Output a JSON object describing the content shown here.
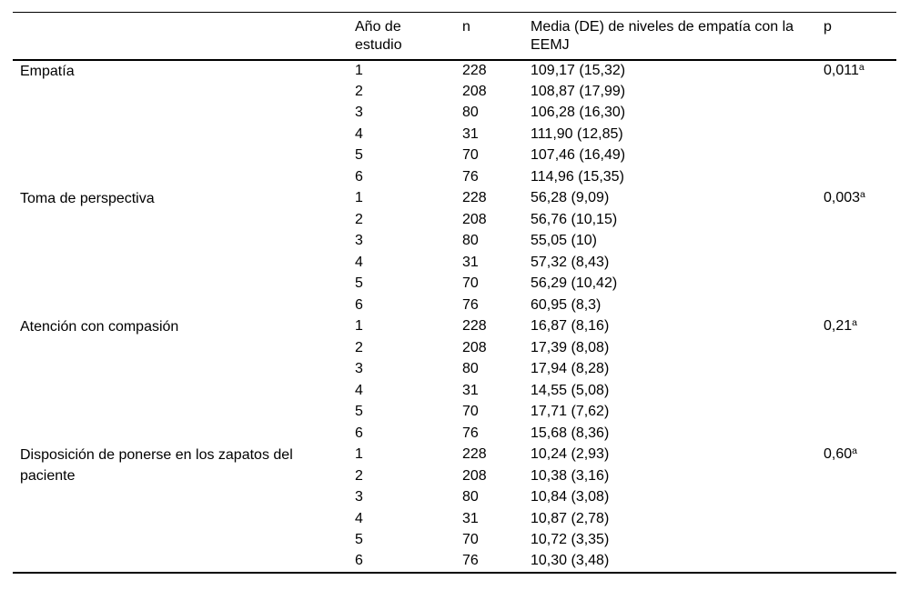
{
  "table": {
    "headers": {
      "row_label": "",
      "year": "Año de estudio",
      "n": "n",
      "mean": "Media (DE) de niveles de empatía con la EEMJ",
      "p": "p"
    },
    "groups": [
      {
        "label": "Empatía",
        "p_value": "0,011",
        "p_sup": "a",
        "rows": [
          {
            "year": "1",
            "n": "228",
            "mean": "109,17 (15,32)"
          },
          {
            "year": "2",
            "n": "208",
            "mean": "108,87 (17,99)"
          },
          {
            "year": "3",
            "n": "80",
            "mean": "106,28 (16,30)"
          },
          {
            "year": "4",
            "n": "31",
            "mean": "111,90 (12,85)"
          },
          {
            "year": "5",
            "n": "70",
            "mean": "107,46 (16,49)"
          },
          {
            "year": "6",
            "n": "76",
            "mean": "114,96 (15,35)"
          }
        ]
      },
      {
        "label": "Toma de perspectiva",
        "p_value": "0,003",
        "p_sup": "a",
        "rows": [
          {
            "year": "1",
            "n": "228",
            "mean": "56,28 (9,09)"
          },
          {
            "year": "2",
            "n": "208",
            "mean": "56,76 (10,15)"
          },
          {
            "year": "3",
            "n": "80",
            "mean": "55,05 (10)"
          },
          {
            "year": "4",
            "n": "31",
            "mean": "57,32 (8,43)"
          },
          {
            "year": "5",
            "n": "70",
            "mean": "56,29 (10,42)"
          },
          {
            "year": "6",
            "n": "76",
            "mean": "60,95 (8,3)"
          }
        ]
      },
      {
        "label": "Atención con compasión",
        "p_value": "0,21",
        "p_sup": "a",
        "rows": [
          {
            "year": "1",
            "n": "228",
            "mean": "16,87 (8,16)"
          },
          {
            "year": "2",
            "n": "208",
            "mean": "17,39 (8,08)"
          },
          {
            "year": "3",
            "n": "80",
            "mean": "17,94 (8,28)"
          },
          {
            "year": "4",
            "n": "31",
            "mean": "14,55 (5,08)"
          },
          {
            "year": "5",
            "n": "70",
            "mean": "17,71 (7,62)"
          },
          {
            "year": "6",
            "n": "76",
            "mean": "15,68 (8,36)"
          }
        ]
      },
      {
        "label": "Disposición de ponerse en los zapatos del paciente",
        "p_value": "0,60",
        "p_sup": "a",
        "rows": [
          {
            "year": "1",
            "n": "228",
            "mean": "10,24 (2,93)"
          },
          {
            "year": "2",
            "n": "208",
            "mean": "10,38 (3,16)"
          },
          {
            "year": "3",
            "n": "80",
            "mean": "10,84 (3,08)"
          },
          {
            "year": "4",
            "n": "31",
            "mean": "10,87 (2,78)"
          },
          {
            "year": "5",
            "n": "70",
            "mean": "10,72 (3,35)"
          },
          {
            "year": "6",
            "n": "76",
            "mean": "10,30 (3,48)"
          }
        ]
      }
    ]
  }
}
